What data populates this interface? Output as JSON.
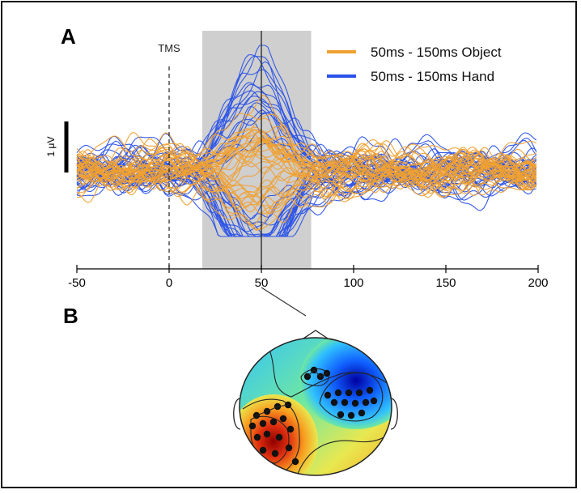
{
  "panels": {
    "a_label": "A",
    "b_label": "B"
  },
  "chart_data": {
    "type": "line",
    "x_ticks": [
      -50,
      0,
      50,
      100,
      150,
      200
    ],
    "xlim": [
      -50,
      200
    ],
    "shaded_window": [
      18,
      77
    ],
    "tms_time": 0,
    "tms_label": "TMS",
    "cursor_time": 50,
    "scale_bar_label": "1 μV",
    "legend_position": "top-right",
    "series": [
      {
        "name": "50ms - 150ms Object",
        "color": "#f0a030",
        "n_traces": 40
      },
      {
        "name": "50ms - 150ms Hand",
        "color": "#2a52e8",
        "n_traces": 40
      }
    ],
    "topomap": {
      "time_ms": 50,
      "colormap": [
        "#0000a0",
        "#1060ff",
        "#30c0ff",
        "#70e8a0",
        "#e8e850",
        "#f8a020",
        "#e03010",
        "#900000"
      ]
    }
  }
}
